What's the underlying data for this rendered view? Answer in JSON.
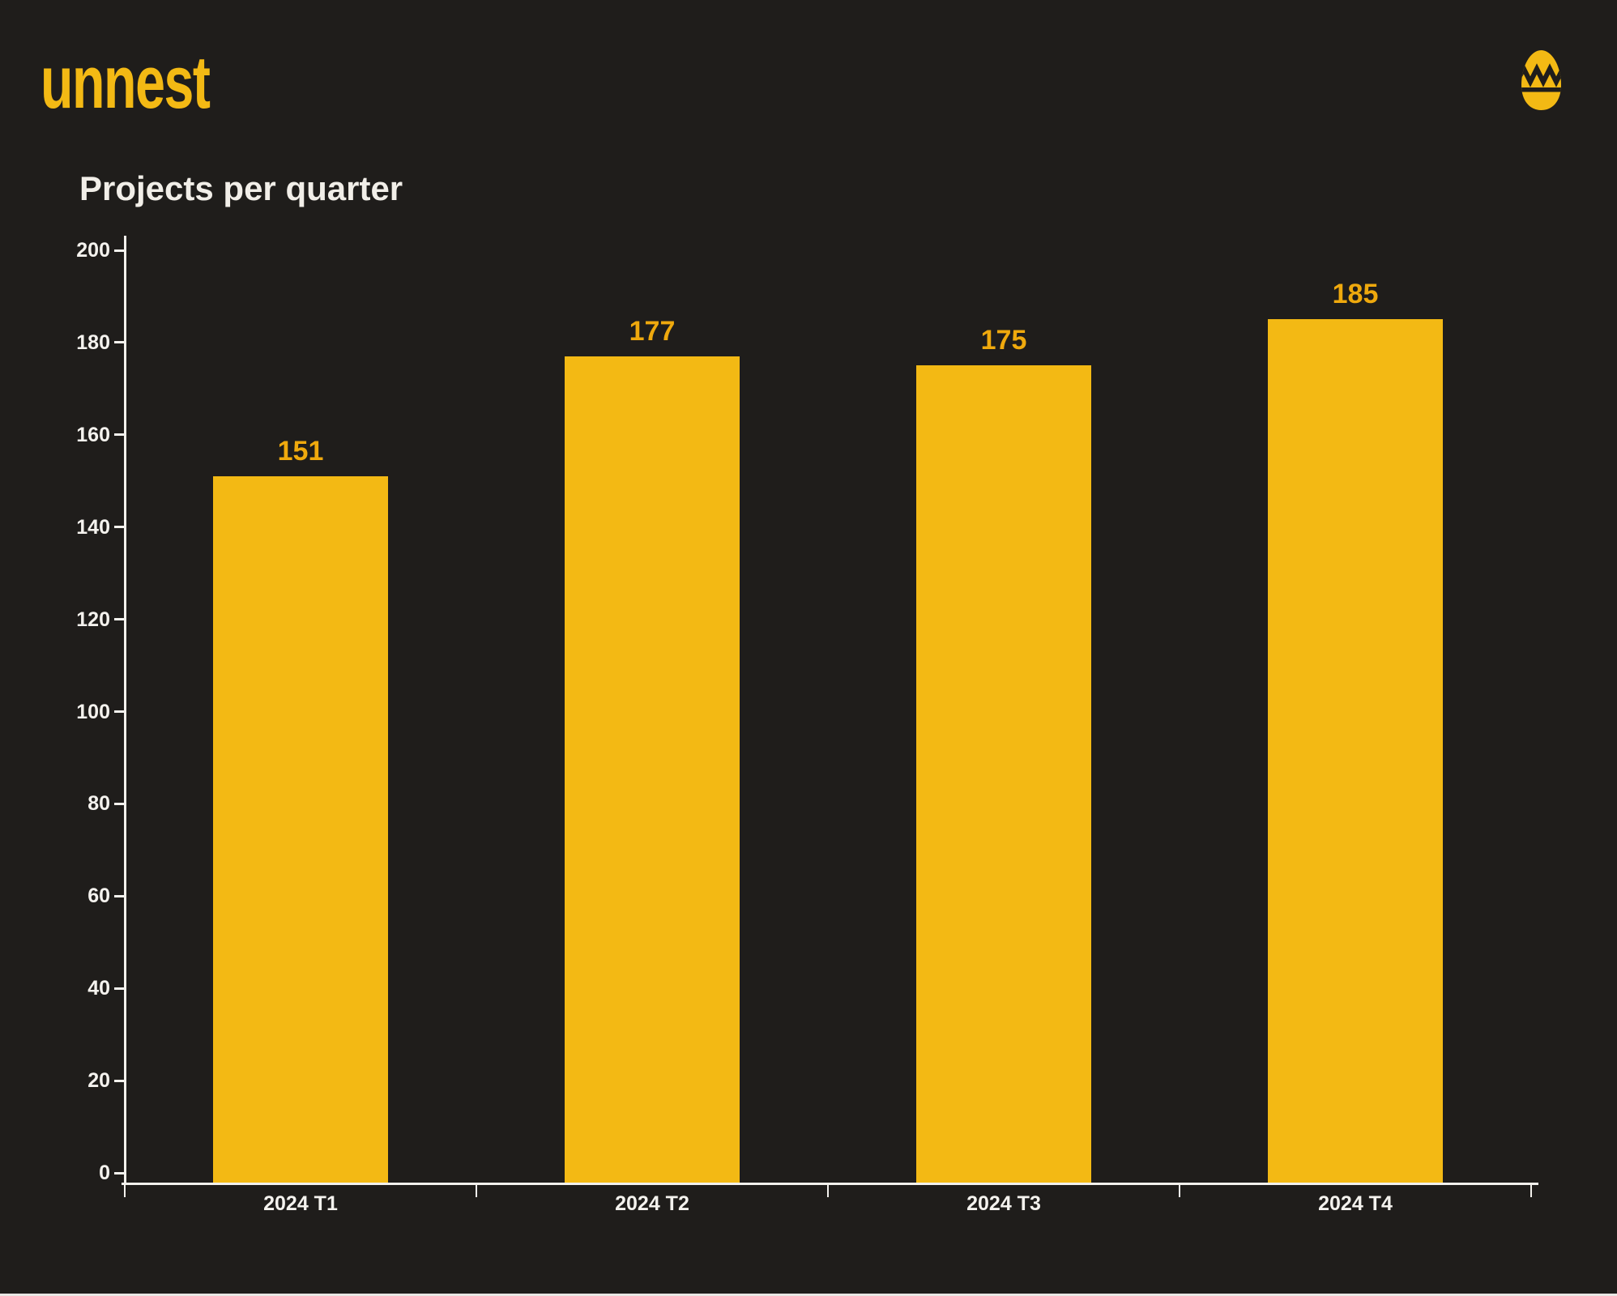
{
  "page": {
    "background": "#1F1D1B",
    "bottom_edge_color": "#E9E7E4"
  },
  "header": {
    "logo_text": "unnest",
    "logo_color": "#F3B914",
    "egg_icon": "cracked-egg-icon"
  },
  "chart_data": {
    "type": "bar",
    "title": "Projects per quarter",
    "categories": [
      "2024 T1",
      "2024 T2",
      "2024 T3",
      "2024 T4"
    ],
    "values": [
      151,
      177,
      175,
      185
    ],
    "xlabel": "",
    "ylabel": "",
    "ylim": [
      0,
      200
    ],
    "ytick_step": 20,
    "ytick_labels": [
      "0",
      "20",
      "40",
      "60",
      "80",
      "100",
      "120",
      "140",
      "160",
      "180",
      "200"
    ],
    "value_labels": [
      "151",
      "177",
      "175",
      "185"
    ],
    "grid": false,
    "legend_position": "none",
    "bar_color": "#F3B914",
    "value_label_color": "#EFA90D",
    "axis_color": "#F3F1ED",
    "title_color": "#F1EEE8",
    "tick_label_color": "#F4F2EE"
  }
}
